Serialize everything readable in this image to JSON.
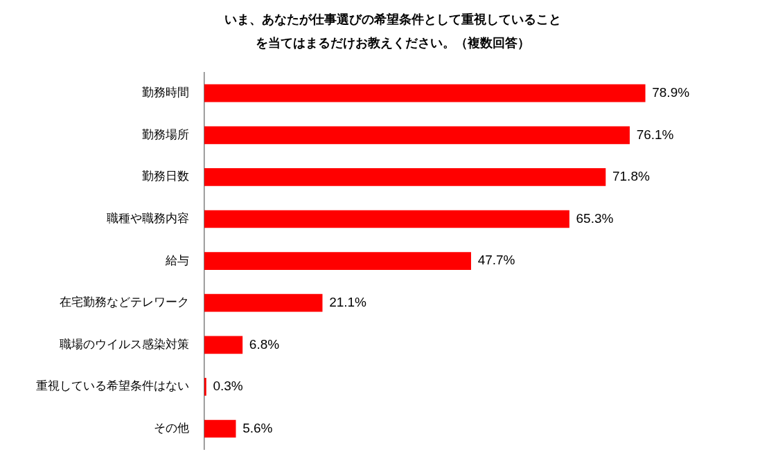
{
  "chart_data": {
    "type": "bar",
    "orientation": "horizontal",
    "title": "いま、あなたが仕事選びの希望条件として重視していることを当てはまるだけお教えください。（複数回答）",
    "categories": [
      "勤務時間",
      "勤務場所",
      "勤務日数",
      "職種や職務内容",
      "給与",
      "在宅勤務などテレワーク",
      "職場のウイルス感染対策",
      "重視している希望条件はない",
      "その他"
    ],
    "values": [
      78.9,
      76.1,
      71.8,
      65.3,
      47.7,
      21.1,
      6.8,
      0.3,
      5.6
    ],
    "value_labels": [
      "78.9%",
      "76.1%",
      "71.8%",
      "65.3%",
      "47.7%",
      "21.1%",
      "6.8%",
      "0.3%",
      "5.6%"
    ],
    "color": "#ff0000",
    "legend": false
  }
}
